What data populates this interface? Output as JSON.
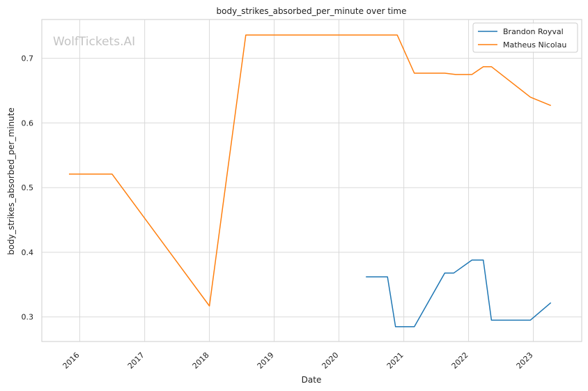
{
  "chart_data": {
    "type": "line",
    "title": "body_strikes_absorbed_per_minute over time",
    "xlabel": "Date",
    "ylabel": "body_strikes_absorbed_per_minute",
    "watermark": "WolfTickets.AI",
    "x_ticks": [
      "2016",
      "2017",
      "2018",
      "2019",
      "2020",
      "2021",
      "2022",
      "2023"
    ],
    "y_ticks": [
      "0.3",
      "0.4",
      "0.5",
      "0.6",
      "0.7"
    ],
    "xlim": [
      "2015-06-01",
      "2023-10-01"
    ],
    "ylim": [
      0.262,
      0.76
    ],
    "grid": true,
    "legend_position": "top-right",
    "series": [
      {
        "name": "Brandon Royval",
        "color": "#1f77b4",
        "points": [
          [
            "2020-06-01",
            0.362
          ],
          [
            "2020-10-01",
            0.362
          ],
          [
            "2020-11-15",
            0.285
          ],
          [
            "2021-03-01",
            0.285
          ],
          [
            "2021-08-20",
            0.368
          ],
          [
            "2021-10-10",
            0.368
          ],
          [
            "2022-01-20",
            0.388
          ],
          [
            "2022-03-25",
            0.388
          ],
          [
            "2022-05-10",
            0.295
          ],
          [
            "2022-12-15",
            0.295
          ],
          [
            "2023-04-10",
            0.322
          ]
        ]
      },
      {
        "name": "Matheus Nicolau",
        "color": "#ff7f0e",
        "points": [
          [
            "2015-11-01",
            0.521
          ],
          [
            "2016-07-01",
            0.521
          ],
          [
            "2018-01-01",
            0.317
          ],
          [
            "2018-07-25",
            0.736
          ],
          [
            "2020-11-25",
            0.736
          ],
          [
            "2021-03-01",
            0.677
          ],
          [
            "2021-08-20",
            0.677
          ],
          [
            "2021-10-20",
            0.675
          ],
          [
            "2022-01-20",
            0.675
          ],
          [
            "2022-03-25",
            0.687
          ],
          [
            "2022-05-10",
            0.687
          ],
          [
            "2022-12-15",
            0.64
          ],
          [
            "2023-04-10",
            0.627
          ]
        ]
      }
    ]
  }
}
